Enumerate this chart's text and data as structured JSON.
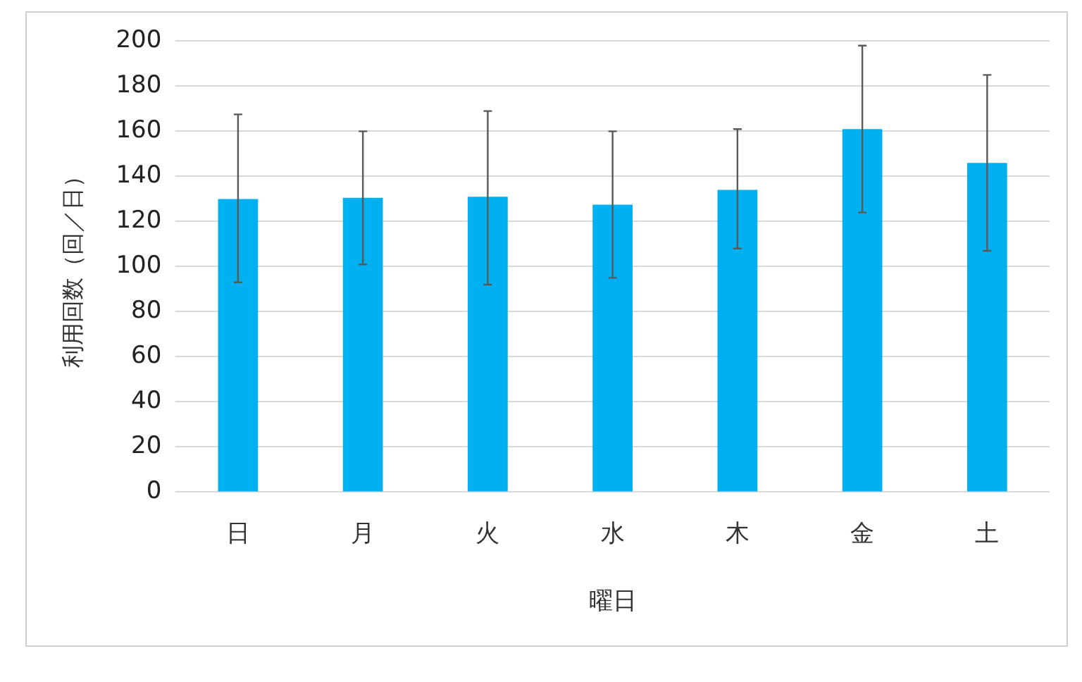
{
  "chart_data": {
    "type": "bar",
    "xlabel": "曜日",
    "ylabel": "利用回数（回／日）",
    "categories": [
      "日",
      "月",
      "火",
      "水",
      "木",
      "金",
      "土"
    ],
    "values": [
      130,
      130.5,
      131,
      127.5,
      134,
      161,
      146
    ],
    "errors": [
      [
        93,
        167.5
      ],
      [
        101,
        160
      ],
      [
        92,
        169
      ],
      [
        95,
        160
      ],
      [
        108,
        161
      ],
      [
        124,
        198
      ],
      [
        107,
        185
      ]
    ],
    "color": "#00b0f0",
    "ylim": [
      0,
      200
    ],
    "yticks": [
      0,
      20,
      40,
      60,
      80,
      100,
      120,
      140,
      160,
      180,
      200
    ],
    "grid": "y",
    "legend": false
  }
}
